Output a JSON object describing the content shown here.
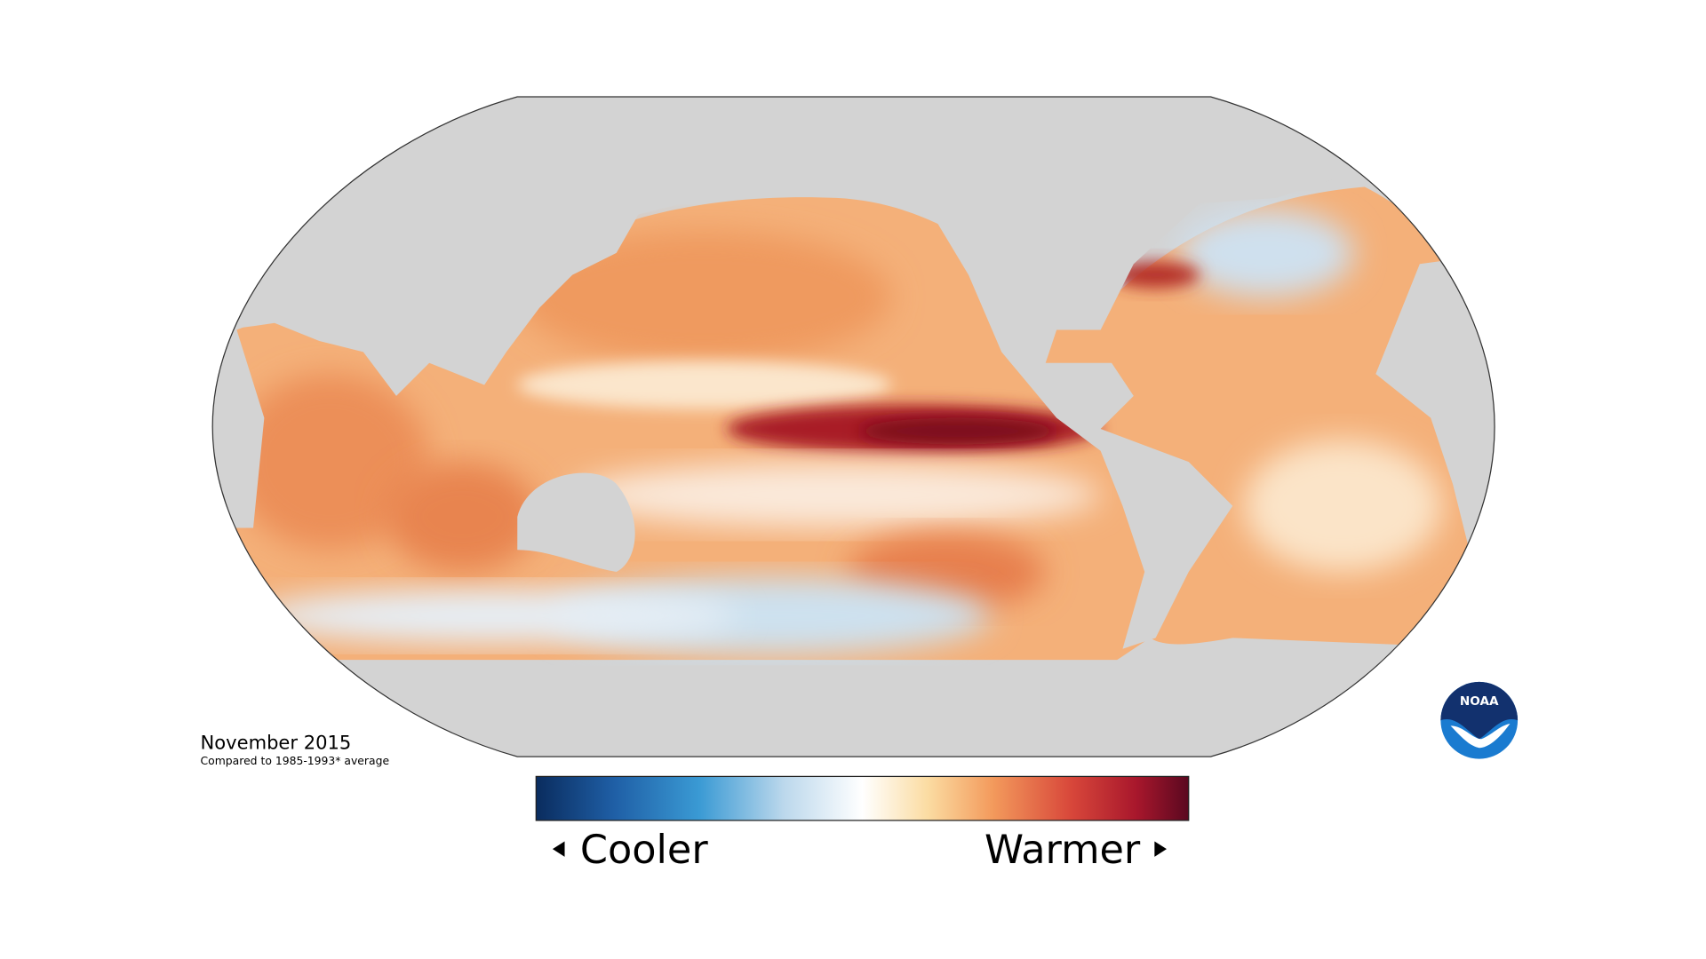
{
  "caption": {
    "title": "November 2015",
    "subtitle": "Compared to 1985-1993* average"
  },
  "legend": {
    "low": "Cooler",
    "high": "Warmer"
  },
  "logo": "NOAA"
}
